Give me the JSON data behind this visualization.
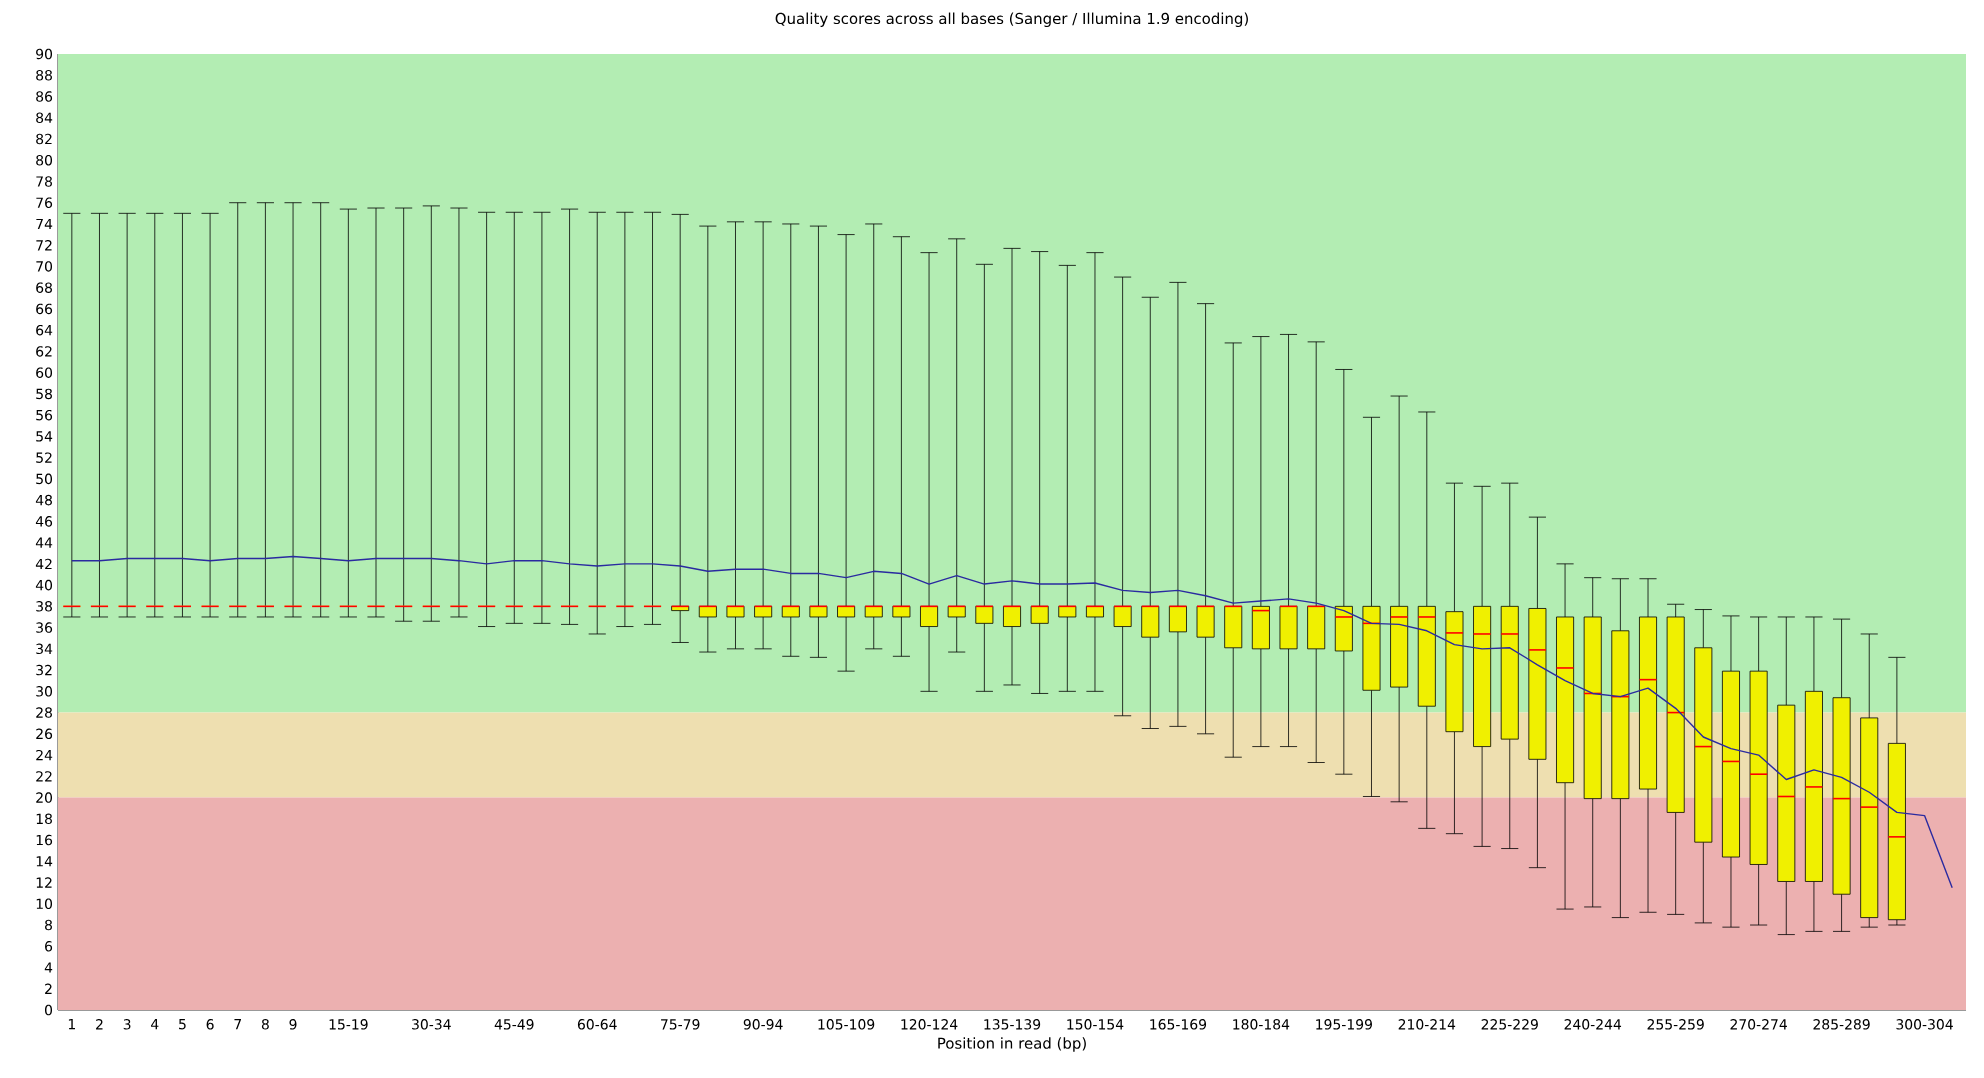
{
  "chart_data": {
    "type": "box",
    "title": "Quality scores across all bases (Sanger / Illumina 1.9 encoding)",
    "xlabel": "Position in read (bp)",
    "categories": [
      "1",
      "2",
      "3",
      "4",
      "5",
      "6",
      "7",
      "8",
      "9",
      null,
      "15-19",
      null,
      null,
      "30-34",
      null,
      null,
      "45-49",
      null,
      null,
      "60-64",
      null,
      null,
      "75-79",
      null,
      null,
      "90-94",
      null,
      null,
      "105-109",
      null,
      null,
      "120-124",
      null,
      null,
      "135-139",
      null,
      null,
      "150-154",
      null,
      null,
      "165-169",
      null,
      null,
      "180-184",
      null,
      null,
      "195-199",
      null,
      null,
      "210-214",
      null,
      null,
      "225-229",
      null,
      null,
      "240-244",
      null,
      null,
      "255-259",
      null,
      null,
      "270-274",
      null,
      null,
      "285-289",
      null,
      null,
      "300-304",
      null
    ],
    "ylim": [
      0,
      90
    ],
    "yticks": [
      0,
      2,
      4,
      6,
      8,
      10,
      12,
      14,
      16,
      18,
      20,
      22,
      24,
      26,
      28,
      30,
      32,
      34,
      36,
      38,
      40,
      42,
      44,
      46,
      48,
      50,
      52,
      54,
      56,
      58,
      60,
      62,
      64,
      66,
      68,
      70,
      72,
      74,
      76,
      78,
      80,
      82,
      84,
      86,
      88,
      90
    ],
    "bands": [
      {
        "axis": "y",
        "from": 28,
        "to": 90,
        "color": "#b3edb3"
      },
      {
        "axis": "y",
        "from": 20,
        "to": 28,
        "color": "#eedfb0"
      },
      {
        "axis": "y",
        "from": 0,
        "to": 20,
        "color": "#ecb0b0"
      }
    ],
    "series": [
      {
        "color": "#f0f000",
        "boxes": [
          {
            "low": 37,
            "q1": 38,
            "median": 38,
            "q3": 38,
            "high": 75
          },
          {
            "low": 37,
            "q1": 38,
            "median": 38,
            "q3": 38,
            "high": 75
          },
          {
            "low": 37,
            "q1": 38,
            "median": 38,
            "q3": 38,
            "high": 75
          },
          {
            "low": 37,
            "q1": 38,
            "median": 38,
            "q3": 38,
            "high": 75
          },
          {
            "low": 37,
            "q1": 38,
            "median": 38,
            "q3": 38,
            "high": 75
          },
          {
            "low": 37,
            "q1": 38,
            "median": 38,
            "q3": 38,
            "high": 75
          },
          {
            "low": 37,
            "q1": 38,
            "median": 38,
            "q3": 38,
            "high": 76
          },
          {
            "low": 37,
            "q1": 38,
            "median": 38,
            "q3": 38,
            "high": 76
          },
          {
            "low": 37,
            "q1": 38,
            "median": 38,
            "q3": 38,
            "high": 76
          },
          {
            "low": 37,
            "q1": 38,
            "median": 38,
            "q3": 38,
            "high": 76
          },
          {
            "low": 37,
            "q1": 38,
            "median": 38,
            "q3": 38,
            "high": 75.4
          },
          {
            "low": 37,
            "q1": 38,
            "median": 38,
            "q3": 38,
            "high": 75.5
          },
          {
            "low": 36.6,
            "q1": 38,
            "median": 38,
            "q3": 38,
            "high": 75.5
          },
          {
            "low": 36.6,
            "q1": 38,
            "median": 38,
            "q3": 38,
            "high": 75.7
          },
          {
            "low": 37,
            "q1": 38,
            "median": 38,
            "q3": 38,
            "high": 75.5
          },
          {
            "low": 36.1,
            "q1": 38,
            "median": 38,
            "q3": 38,
            "high": 75.1
          },
          {
            "low": 36.4,
            "q1": 38,
            "median": 38,
            "q3": 38,
            "high": 75.1
          },
          {
            "low": 36.4,
            "q1": 38,
            "median": 38,
            "q3": 38,
            "high": 75.1
          },
          {
            "low": 36.3,
            "q1": 38,
            "median": 38,
            "q3": 38,
            "high": 75.4
          },
          {
            "low": 35.4,
            "q1": 38,
            "median": 38,
            "q3": 38,
            "high": 75.1
          },
          {
            "low": 36.1,
            "q1": 38,
            "median": 38,
            "q3": 38,
            "high": 75.1
          },
          {
            "low": 36.3,
            "q1": 38,
            "median": 38,
            "q3": 38,
            "high": 75.1
          },
          {
            "low": 34.6,
            "q1": 37.6,
            "median": 38,
            "q3": 38,
            "high": 74.9
          },
          {
            "low": 33.7,
            "q1": 37,
            "median": 38,
            "q3": 38,
            "high": 73.8
          },
          {
            "low": 34.0,
            "q1": 37,
            "median": 38,
            "q3": 38,
            "high": 74.2
          },
          {
            "low": 34.0,
            "q1": 37,
            "median": 38,
            "q3": 38,
            "high": 74.2
          },
          {
            "low": 33.3,
            "q1": 37,
            "median": 38,
            "q3": 38,
            "high": 74.0
          },
          {
            "low": 33.2,
            "q1": 37,
            "median": 38,
            "q3": 38,
            "high": 73.8
          },
          {
            "low": 31.9,
            "q1": 37,
            "median": 38,
            "q3": 38,
            "high": 73.0
          },
          {
            "low": 34.0,
            "q1": 37,
            "median": 38,
            "q3": 38,
            "high": 74.0
          },
          {
            "low": 33.3,
            "q1": 37,
            "median": 38,
            "q3": 38,
            "high": 72.8
          },
          {
            "low": 30.0,
            "q1": 36.1,
            "median": 38,
            "q3": 38,
            "high": 71.3
          },
          {
            "low": 33.7,
            "q1": 37,
            "median": 38,
            "q3": 38,
            "high": 72.6
          },
          {
            "low": 30.0,
            "q1": 36.4,
            "median": 38,
            "q3": 38,
            "high": 70.2
          },
          {
            "low": 30.6,
            "q1": 36.1,
            "median": 38,
            "q3": 38,
            "high": 71.7
          },
          {
            "low": 29.8,
            "q1": 36.4,
            "median": 38,
            "q3": 38,
            "high": 71.4
          },
          {
            "low": 30.0,
            "q1": 37,
            "median": 38,
            "q3": 38,
            "high": 70.1
          },
          {
            "low": 30.0,
            "q1": 37,
            "median": 38,
            "q3": 38,
            "high": 71.3
          },
          {
            "low": 27.7,
            "q1": 36.1,
            "median": 38,
            "q3": 38,
            "high": 69.0
          },
          {
            "low": 26.5,
            "q1": 35.1,
            "median": 38,
            "q3": 38,
            "high": 67.1
          },
          {
            "low": 26.7,
            "q1": 35.6,
            "median": 38,
            "q3": 38,
            "high": 68.5
          },
          {
            "low": 26.0,
            "q1": 35.1,
            "median": 38,
            "q3": 38,
            "high": 66.5
          },
          {
            "low": 23.8,
            "q1": 34.1,
            "median": 38,
            "q3": 38,
            "high": 62.8
          },
          {
            "low": 24.8,
            "q1": 34.0,
            "median": 37.6,
            "q3": 38,
            "high": 63.4
          },
          {
            "low": 24.8,
            "q1": 34.0,
            "median": 38,
            "q3": 38,
            "high": 63.6
          },
          {
            "low": 23.3,
            "q1": 34.0,
            "median": 38,
            "q3": 38,
            "high": 62.9
          },
          {
            "low": 22.2,
            "q1": 33.8,
            "median": 37.0,
            "q3": 38,
            "high": 60.3
          },
          {
            "low": 20.1,
            "q1": 30.1,
            "median": 36.4,
            "q3": 38,
            "high": 55.8
          },
          {
            "low": 19.6,
            "q1": 30.4,
            "median": 37.0,
            "q3": 38,
            "high": 57.8
          },
          {
            "low": 17.1,
            "q1": 28.6,
            "median": 37.0,
            "q3": 38,
            "high": 56.3
          },
          {
            "low": 16.6,
            "q1": 26.2,
            "median": 35.5,
            "q3": 37.5,
            "high": 49.6
          },
          {
            "low": 15.4,
            "q1": 24.8,
            "median": 35.4,
            "q3": 38,
            "high": 49.3
          },
          {
            "low": 15.2,
            "q1": 25.5,
            "median": 35.4,
            "q3": 38,
            "high": 49.6
          },
          {
            "low": 13.4,
            "q1": 23.6,
            "median": 33.9,
            "q3": 37.8,
            "high": 46.4
          },
          {
            "low": 9.5,
            "q1": 21.4,
            "median": 32.2,
            "q3": 37.0,
            "high": 42.0
          },
          {
            "low": 9.7,
            "q1": 19.9,
            "median": 29.8,
            "q3": 37.0,
            "high": 40.7
          },
          {
            "low": 8.7,
            "q1": 19.9,
            "median": 29.5,
            "q3": 35.7,
            "high": 40.6
          },
          {
            "low": 9.2,
            "q1": 20.8,
            "median": 31.1,
            "q3": 37.0,
            "high": 40.6
          },
          {
            "low": 9.0,
            "q1": 18.6,
            "median": 28.0,
            "q3": 37.0,
            "high": 38.2
          },
          {
            "low": 8.2,
            "q1": 15.8,
            "median": 24.8,
            "q3": 34.1,
            "high": 37.7
          },
          {
            "low": 7.8,
            "q1": 14.4,
            "median": 23.4,
            "q3": 31.9,
            "high": 37.1
          },
          {
            "low": 8.0,
            "q1": 13.7,
            "median": 22.2,
            "q3": 31.9,
            "high": 37.0
          },
          {
            "low": 7.1,
            "q1": 12.1,
            "median": 20.1,
            "q3": 28.7,
            "high": 37.0
          },
          {
            "low": 7.4,
            "q1": 12.1,
            "median": 21.0,
            "q3": 30.0,
            "high": 37.0
          },
          {
            "low": 7.4,
            "q1": 10.9,
            "median": 19.9,
            "q3": 29.4,
            "high": 36.8
          },
          {
            "low": 7.8,
            "q1": 8.7,
            "median": 19.1,
            "q3": 27.5,
            "high": 35.4
          },
          {
            "low": 8.0,
            "q1": 8.5,
            "median": 16.3,
            "q3": 25.1,
            "high": 33.2
          },
          null,
          null
        ]
      },
      {
        "type": "line",
        "color": "#2a2aa0",
        "values": [
          42.3,
          42.3,
          42.5,
          42.5,
          42.5,
          42.3,
          42.5,
          42.5,
          42.7,
          42.5,
          42.3,
          42.5,
          42.5,
          42.5,
          42.3,
          42.0,
          42.3,
          42.3,
          42.0,
          41.8,
          42.0,
          42.0,
          41.8,
          41.3,
          41.5,
          41.5,
          41.1,
          41.1,
          40.7,
          41.3,
          41.1,
          40.1,
          40.9,
          40.1,
          40.4,
          40.1,
          40.1,
          40.2,
          39.5,
          39.3,
          39.5,
          39.0,
          38.3,
          38.5,
          38.7,
          38.3,
          37.6,
          36.4,
          36.3,
          35.7,
          34.4,
          34.0,
          34.1,
          32.5,
          31.0,
          29.8,
          29.5,
          30.3,
          28.4,
          25.7,
          24.6,
          24.0,
          21.7,
          22.6,
          21.9,
          20.5,
          18.6,
          18.3,
          11.5
        ]
      }
    ]
  }
}
